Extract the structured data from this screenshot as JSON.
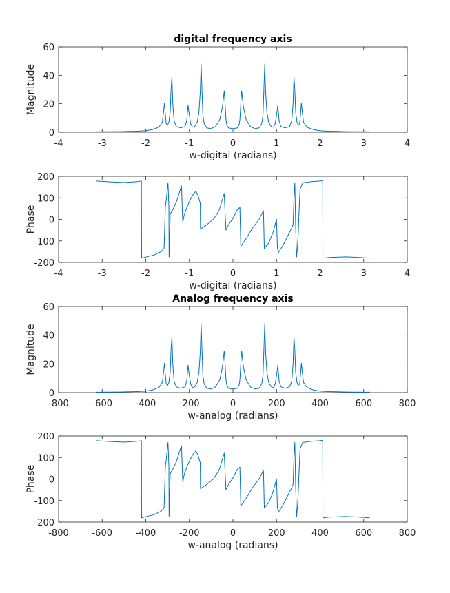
{
  "colors": {
    "line": "#0072BD",
    "axes": "#262626",
    "background": "#ffffff"
  },
  "chart_data": [
    {
      "type": "line",
      "title": "digital frequency axis",
      "xlabel": "w-digital (radians)",
      "ylabel": "Magnitude",
      "xlim": [
        -4,
        4
      ],
      "ylim": [
        0,
        60
      ],
      "xticks": [
        -4,
        -3,
        -2,
        -1,
        0,
        1,
        2,
        3,
        4
      ],
      "yticks": [
        0,
        20,
        40,
        60
      ],
      "grid": false,
      "series": [
        {
          "x": [
            -3.14,
            -2.6,
            -2.2,
            -2.0,
            -1.85,
            -1.7,
            -1.62,
            -1.6,
            -1.57,
            -1.55,
            -1.53,
            -1.5,
            -1.47,
            -1.44,
            -1.42,
            -1.4,
            -1.38,
            -1.35,
            -1.3,
            -1.2,
            -1.1,
            -1.06,
            -1.03,
            -1.0,
            -0.97,
            -0.93,
            -0.88,
            -0.82,
            -0.78,
            -0.75,
            -0.73,
            -0.71,
            -0.69,
            -0.66,
            -0.6,
            -0.5,
            -0.4,
            -0.3,
            -0.24,
            -0.2,
            -0.18,
            -0.16,
            -0.14,
            -0.1,
            0.0,
            0.1,
            0.14,
            0.16,
            0.18,
            0.2,
            0.24,
            0.3,
            0.4,
            0.5,
            0.6,
            0.66,
            0.69,
            0.71,
            0.73,
            0.75,
            0.78,
            0.82,
            0.88,
            0.93,
            0.97,
            1.0,
            1.03,
            1.06,
            1.1,
            1.2,
            1.3,
            1.35,
            1.38,
            1.4,
            1.42,
            1.44,
            1.47,
            1.5,
            1.53,
            1.55,
            1.57,
            1.6,
            1.62,
            1.7,
            1.85,
            2.0,
            2.2,
            2.6,
            3.14
          ],
          "y": [
            0.3,
            0.4,
            0.7,
            1,
            1.8,
            3.5,
            7,
            12,
            20.5,
            12,
            6,
            5,
            7,
            14,
            30,
            39,
            20,
            8,
            4,
            3,
            4,
            8,
            19,
            12,
            6,
            3.5,
            4,
            7,
            14,
            28,
            48,
            30,
            12,
            6,
            3,
            2.5,
            4,
            9,
            18,
            29,
            20,
            9,
            5,
            3,
            2.5,
            3,
            5,
            9,
            20,
            29,
            18,
            9,
            4,
            2.5,
            3,
            6,
            12,
            30,
            48,
            28,
            14,
            7,
            4,
            3.5,
            6,
            12,
            19,
            8,
            4,
            3,
            4,
            8,
            20,
            39,
            30,
            14,
            7,
            5,
            6,
            12,
            20.5,
            12,
            7,
            3.5,
            1.8,
            1,
            0.7,
            0.4,
            0.3
          ]
        }
      ]
    },
    {
      "type": "line",
      "title": "",
      "xlabel": "w-digital (radians)",
      "ylabel": "Phase",
      "xlim": [
        -4,
        4
      ],
      "ylim": [
        -200,
        200
      ],
      "xticks": [
        -4,
        -3,
        -2,
        -1,
        0,
        1,
        2,
        3,
        4
      ],
      "yticks": [
        -200,
        -100,
        0,
        100,
        200
      ],
      "grid": false,
      "series": [
        {
          "x": [
            -3.14,
            -2.8,
            -2.5,
            -2.2,
            -2.1,
            -2.095,
            -2.0,
            -1.8,
            -1.65,
            -1.58,
            -1.55,
            -1.53,
            -1.51,
            -1.49,
            -1.47,
            -1.465,
            -1.44,
            -1.38,
            -1.3,
            -1.22,
            -1.18,
            -1.16,
            -1.15,
            -1.12,
            -1.05,
            -0.96,
            -0.9,
            -0.85,
            -0.8,
            -0.75,
            -0.745,
            -0.6,
            -0.45,
            -0.32,
            -0.2,
            -0.18,
            -0.16,
            -0.1,
            0.0,
            0.1,
            0.16,
            0.18,
            0.3,
            0.45,
            0.6,
            0.7,
            0.72,
            0.82,
            0.92,
            1.0,
            1.02,
            1.04,
            1.15,
            1.25,
            1.35,
            1.38,
            1.4,
            1.42,
            1.44,
            1.46,
            1.48,
            1.5,
            1.52,
            1.54,
            1.6,
            1.8,
            2.0,
            2.06,
            2.065,
            2.2,
            2.6,
            2.9,
            3.14
          ],
          "y": [
            178,
            174,
            171,
            175,
            178,
            -180,
            -175,
            -165,
            -150,
            -135,
            60,
            90,
            130,
            170,
            60,
            -175,
            25,
            45,
            80,
            130,
            155,
            30,
            -15,
            20,
            60,
            100,
            120,
            130,
            110,
            75,
            -45,
            -25,
            0,
            40,
            120,
            30,
            -50,
            -25,
            5,
            45,
            55,
            -125,
            -90,
            -40,
            0,
            40,
            -135,
            -110,
            -60,
            0,
            -130,
            -155,
            -120,
            -80,
            -40,
            -25,
            100,
            170,
            -40,
            -175,
            -130,
            -60,
            50,
            140,
            170,
            175,
            178,
            180,
            -180,
            -177,
            -174,
            -177,
            -180
          ]
        }
      ]
    },
    {
      "type": "line",
      "title": "Analog frequency axis",
      "xlabel": "w-analog (radians)",
      "ylabel": "Magnitude",
      "xlim": [
        -800,
        800
      ],
      "ylim": [
        0,
        60
      ],
      "xticks": [
        -800,
        -600,
        -400,
        -200,
        0,
        200,
        400,
        600,
        800
      ],
      "yticks": [
        0,
        20,
        40,
        60
      ],
      "grid": false,
      "series": [
        {
          "x": [
            -628,
            -520,
            -440,
            -400,
            -370,
            -340,
            -324,
            -320,
            -314,
            -310,
            -306,
            -300,
            -294,
            -288,
            -284,
            -280,
            -276,
            -270,
            -260,
            -240,
            -220,
            -212,
            -206,
            -200,
            -194,
            -186,
            -176,
            -164,
            -156,
            -150,
            -146,
            -142,
            -138,
            -132,
            -120,
            -100,
            -80,
            -60,
            -48,
            -40,
            -36,
            -32,
            -28,
            -20,
            0,
            20,
            28,
            32,
            36,
            40,
            48,
            60,
            80,
            100,
            120,
            132,
            138,
            142,
            146,
            150,
            156,
            164,
            176,
            186,
            194,
            200,
            206,
            212,
            220,
            240,
            260,
            270,
            276,
            280,
            284,
            288,
            294,
            300,
            306,
            310,
            314,
            320,
            324,
            340,
            370,
            400,
            440,
            520,
            628
          ],
          "y": [
            0.3,
            0.4,
            0.7,
            1,
            1.8,
            3.5,
            7,
            12,
            20.5,
            12,
            6,
            5,
            7,
            14,
            30,
            39,
            20,
            8,
            4,
            3,
            4,
            8,
            19,
            12,
            6,
            3.5,
            4,
            7,
            14,
            28,
            48,
            30,
            12,
            6,
            3,
            2.5,
            4,
            9,
            18,
            29,
            20,
            9,
            5,
            3,
            2.5,
            3,
            5,
            9,
            20,
            29,
            18,
            9,
            4,
            2.5,
            3,
            6,
            12,
            30,
            48,
            28,
            14,
            7,
            4,
            3.5,
            6,
            12,
            19,
            8,
            4,
            3,
            4,
            8,
            20,
            39,
            30,
            14,
            7,
            5,
            6,
            12,
            20.5,
            12,
            7,
            3.5,
            1.8,
            1,
            0.7,
            0.4,
            0.3
          ]
        }
      ]
    },
    {
      "type": "line",
      "title": "",
      "xlabel": "w-analog (radians)",
      "ylabel": "Phase",
      "xlim": [
        -800,
        800
      ],
      "ylim": [
        -200,
        200
      ],
      "xticks": [
        -800,
        -600,
        -400,
        -200,
        0,
        200,
        400,
        600,
        800
      ],
      "yticks": [
        -200,
        -100,
        0,
        100,
        200
      ],
      "grid": false,
      "series": [
        {
          "x": [
            -628,
            -560,
            -500,
            -440,
            -420,
            -419,
            -400,
            -360,
            -330,
            -316,
            -310,
            -306,
            -302,
            -298,
            -294,
            -293,
            -288,
            -276,
            -260,
            -244,
            -236,
            -232,
            -230,
            -224,
            -210,
            -192,
            -180,
            -170,
            -160,
            -150,
            -149,
            -120,
            -90,
            -64,
            -40,
            -36,
            -32,
            -20,
            0,
            20,
            32,
            36,
            60,
            90,
            120,
            140,
            144,
            164,
            184,
            200,
            204,
            208,
            230,
            250,
            270,
            276,
            280,
            284,
            288,
            292,
            296,
            300,
            304,
            308,
            320,
            360,
            400,
            412,
            413,
            440,
            520,
            580,
            628
          ],
          "y": [
            178,
            174,
            171,
            175,
            178,
            -180,
            -175,
            -165,
            -150,
            -135,
            60,
            90,
            130,
            170,
            60,
            -175,
            25,
            45,
            80,
            130,
            155,
            30,
            -15,
            20,
            60,
            100,
            120,
            130,
            110,
            75,
            -45,
            -25,
            0,
            40,
            120,
            30,
            -50,
            -25,
            5,
            45,
            55,
            -125,
            -90,
            -40,
            0,
            40,
            -135,
            -110,
            -60,
            0,
            -130,
            -155,
            -120,
            -80,
            -40,
            -25,
            100,
            170,
            -40,
            -175,
            -130,
            -60,
            50,
            140,
            170,
            175,
            178,
            180,
            -180,
            -177,
            -174,
            -177,
            -180
          ]
        }
      ]
    }
  ]
}
